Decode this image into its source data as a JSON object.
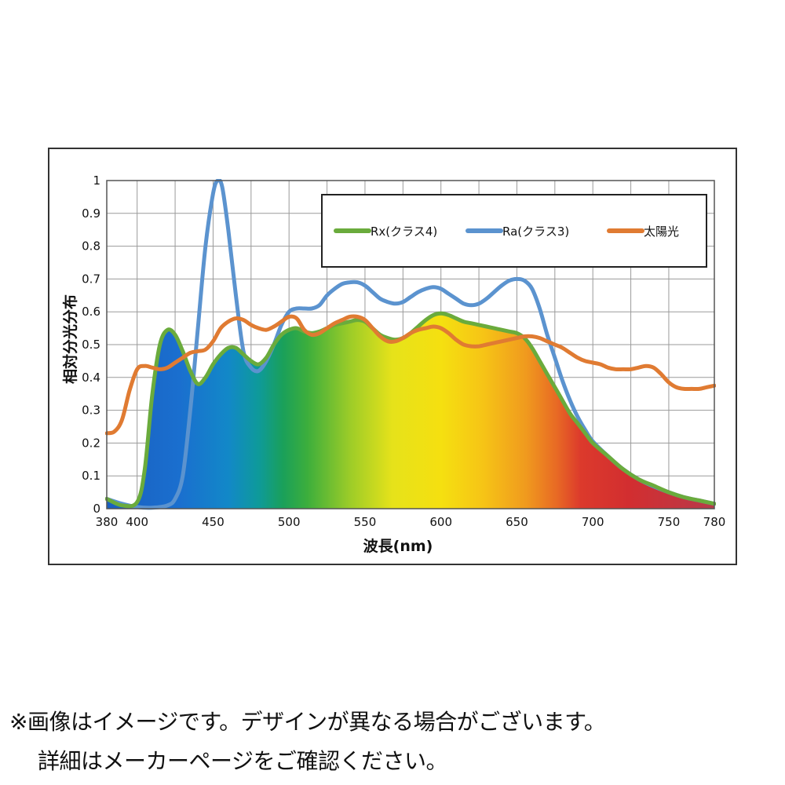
{
  "chart_data": {
    "type": "line",
    "xlabel": "波長(nm)",
    "ylabel": "相対分光分布",
    "xlim": [
      380,
      780
    ],
    "ylim": [
      0,
      1
    ],
    "x_tick_labels": [
      {
        "value": 380,
        "label": "380"
      },
      {
        "value": 400,
        "label": "400"
      },
      {
        "value": 450,
        "label": "450"
      },
      {
        "value": 500,
        "label": "500"
      },
      {
        "value": 550,
        "label": "550"
      },
      {
        "value": 600,
        "label": "600"
      },
      {
        "value": 650,
        "label": "650"
      },
      {
        "value": 700,
        "label": "700"
      },
      {
        "value": 750,
        "label": "750"
      },
      {
        "value": 780,
        "label": "780"
      }
    ],
    "x_gridlines": [
      380,
      400,
      425,
      450,
      475,
      500,
      525,
      550,
      575,
      600,
      625,
      650,
      675,
      700,
      725,
      750,
      780
    ],
    "y_ticks": [
      0,
      0.1,
      0.2,
      0.3,
      0.4,
      0.5,
      0.6,
      0.7,
      0.8,
      0.9,
      1
    ],
    "y_tick_labels": [
      "0",
      "0.1",
      "0.2",
      "0.3",
      "0.4",
      "0.5",
      "0.6",
      "0.7",
      "0.8",
      "0.9",
      "1"
    ],
    "grid": true,
    "legend_position": "top-right",
    "series": [
      {
        "name": "Rx(クラス4)",
        "color": "#6aab3c",
        "filled": "spectrum",
        "points": [
          [
            380,
            0.03
          ],
          [
            390,
            0.01
          ],
          [
            400,
            0.02
          ],
          [
            405,
            0.12
          ],
          [
            410,
            0.35
          ],
          [
            415,
            0.5
          ],
          [
            420,
            0.545
          ],
          [
            425,
            0.53
          ],
          [
            430,
            0.48
          ],
          [
            435,
            0.42
          ],
          [
            440,
            0.38
          ],
          [
            445,
            0.4
          ],
          [
            450,
            0.44
          ],
          [
            455,
            0.47
          ],
          [
            460,
            0.49
          ],
          [
            465,
            0.49
          ],
          [
            470,
            0.47
          ],
          [
            475,
            0.45
          ],
          [
            480,
            0.44
          ],
          [
            485,
            0.46
          ],
          [
            490,
            0.5
          ],
          [
            495,
            0.53
          ],
          [
            500,
            0.545
          ],
          [
            505,
            0.55
          ],
          [
            510,
            0.54
          ],
          [
            515,
            0.535
          ],
          [
            520,
            0.54
          ],
          [
            525,
            0.55
          ],
          [
            530,
            0.56
          ],
          [
            535,
            0.565
          ],
          [
            540,
            0.57
          ],
          [
            545,
            0.575
          ],
          [
            550,
            0.57
          ],
          [
            555,
            0.55
          ],
          [
            560,
            0.53
          ],
          [
            565,
            0.52
          ],
          [
            570,
            0.515
          ],
          [
            575,
            0.52
          ],
          [
            580,
            0.535
          ],
          [
            585,
            0.555
          ],
          [
            590,
            0.575
          ],
          [
            595,
            0.59
          ],
          [
            600,
            0.595
          ],
          [
            605,
            0.59
          ],
          [
            610,
            0.58
          ],
          [
            615,
            0.57
          ],
          [
            620,
            0.565
          ],
          [
            625,
            0.56
          ],
          [
            630,
            0.555
          ],
          [
            635,
            0.55
          ],
          [
            640,
            0.545
          ],
          [
            645,
            0.54
          ],
          [
            650,
            0.535
          ],
          [
            655,
            0.52
          ],
          [
            660,
            0.49
          ],
          [
            665,
            0.45
          ],
          [
            670,
            0.41
          ],
          [
            675,
            0.37
          ],
          [
            680,
            0.33
          ],
          [
            685,
            0.29
          ],
          [
            690,
            0.26
          ],
          [
            695,
            0.23
          ],
          [
            700,
            0.2
          ],
          [
            710,
            0.16
          ],
          [
            720,
            0.12
          ],
          [
            730,
            0.09
          ],
          [
            740,
            0.07
          ],
          [
            750,
            0.05
          ],
          [
            760,
            0.035
          ],
          [
            770,
            0.025
          ],
          [
            780,
            0.015
          ]
        ]
      },
      {
        "name": "Ra(クラス3)",
        "color": "#5b93cf",
        "points": [
          [
            380,
            0.03
          ],
          [
            390,
            0.015
          ],
          [
            400,
            0.005
          ],
          [
            410,
            0.003
          ],
          [
            420,
            0.01
          ],
          [
            425,
            0.03
          ],
          [
            430,
            0.1
          ],
          [
            435,
            0.3
          ],
          [
            440,
            0.55
          ],
          [
            445,
            0.8
          ],
          [
            450,
            0.96
          ],
          [
            453,
            1.0
          ],
          [
            456,
            0.98
          ],
          [
            460,
            0.85
          ],
          [
            465,
            0.65
          ],
          [
            470,
            0.48
          ],
          [
            475,
            0.43
          ],
          [
            480,
            0.42
          ],
          [
            485,
            0.45
          ],
          [
            490,
            0.5
          ],
          [
            495,
            0.56
          ],
          [
            500,
            0.6
          ],
          [
            505,
            0.61
          ],
          [
            510,
            0.61
          ],
          [
            515,
            0.61
          ],
          [
            520,
            0.62
          ],
          [
            525,
            0.65
          ],
          [
            530,
            0.67
          ],
          [
            535,
            0.685
          ],
          [
            540,
            0.69
          ],
          [
            545,
            0.69
          ],
          [
            550,
            0.68
          ],
          [
            555,
            0.66
          ],
          [
            560,
            0.64
          ],
          [
            565,
            0.63
          ],
          [
            570,
            0.625
          ],
          [
            575,
            0.63
          ],
          [
            580,
            0.645
          ],
          [
            585,
            0.66
          ],
          [
            590,
            0.67
          ],
          [
            595,
            0.675
          ],
          [
            600,
            0.67
          ],
          [
            605,
            0.655
          ],
          [
            610,
            0.64
          ],
          [
            615,
            0.625
          ],
          [
            620,
            0.62
          ],
          [
            625,
            0.625
          ],
          [
            630,
            0.64
          ],
          [
            635,
            0.66
          ],
          [
            640,
            0.68
          ],
          [
            645,
            0.695
          ],
          [
            650,
            0.7
          ],
          [
            655,
            0.695
          ],
          [
            660,
            0.67
          ],
          [
            665,
            0.61
          ],
          [
            670,
            0.53
          ],
          [
            675,
            0.46
          ],
          [
            680,
            0.39
          ],
          [
            685,
            0.33
          ],
          [
            690,
            0.28
          ],
          [
            695,
            0.24
          ],
          [
            700,
            0.205
          ],
          [
            710,
            0.16
          ],
          [
            720,
            0.12
          ],
          [
            730,
            0.09
          ],
          [
            740,
            0.068
          ],
          [
            750,
            0.05
          ],
          [
            760,
            0.035
          ],
          [
            770,
            0.025
          ],
          [
            780,
            0.015
          ]
        ]
      },
      {
        "name": "太陽光",
        "color": "#e07b32",
        "points": [
          [
            380,
            0.23
          ],
          [
            385,
            0.235
          ],
          [
            390,
            0.27
          ],
          [
            395,
            0.36
          ],
          [
            400,
            0.425
          ],
          [
            405,
            0.435
          ],
          [
            410,
            0.43
          ],
          [
            415,
            0.425
          ],
          [
            420,
            0.43
          ],
          [
            425,
            0.445
          ],
          [
            430,
            0.46
          ],
          [
            435,
            0.475
          ],
          [
            440,
            0.48
          ],
          [
            445,
            0.485
          ],
          [
            450,
            0.51
          ],
          [
            455,
            0.55
          ],
          [
            460,
            0.57
          ],
          [
            465,
            0.58
          ],
          [
            470,
            0.575
          ],
          [
            475,
            0.56
          ],
          [
            480,
            0.55
          ],
          [
            485,
            0.545
          ],
          [
            490,
            0.555
          ],
          [
            495,
            0.57
          ],
          [
            500,
            0.585
          ],
          [
            505,
            0.58
          ],
          [
            510,
            0.545
          ],
          [
            515,
            0.53
          ],
          [
            520,
            0.535
          ],
          [
            525,
            0.55
          ],
          [
            530,
            0.565
          ],
          [
            535,
            0.575
          ],
          [
            540,
            0.585
          ],
          [
            545,
            0.585
          ],
          [
            550,
            0.575
          ],
          [
            555,
            0.55
          ],
          [
            560,
            0.525
          ],
          [
            565,
            0.51
          ],
          [
            570,
            0.51
          ],
          [
            575,
            0.52
          ],
          [
            580,
            0.535
          ],
          [
            585,
            0.545
          ],
          [
            590,
            0.55
          ],
          [
            595,
            0.555
          ],
          [
            600,
            0.55
          ],
          [
            605,
            0.535
          ],
          [
            610,
            0.515
          ],
          [
            615,
            0.5
          ],
          [
            620,
            0.495
          ],
          [
            625,
            0.495
          ],
          [
            630,
            0.5
          ],
          [
            635,
            0.505
          ],
          [
            640,
            0.51
          ],
          [
            645,
            0.515
          ],
          [
            650,
            0.52
          ],
          [
            655,
            0.525
          ],
          [
            660,
            0.525
          ],
          [
            665,
            0.52
          ],
          [
            670,
            0.51
          ],
          [
            675,
            0.5
          ],
          [
            680,
            0.49
          ],
          [
            685,
            0.475
          ],
          [
            690,
            0.46
          ],
          [
            695,
            0.45
          ],
          [
            700,
            0.445
          ],
          [
            705,
            0.44
          ],
          [
            710,
            0.43
          ],
          [
            715,
            0.425
          ],
          [
            720,
            0.425
          ],
          [
            725,
            0.425
          ],
          [
            730,
            0.43
          ],
          [
            735,
            0.435
          ],
          [
            740,
            0.43
          ],
          [
            745,
            0.41
          ],
          [
            750,
            0.385
          ],
          [
            755,
            0.37
          ],
          [
            760,
            0.365
          ],
          [
            765,
            0.365
          ],
          [
            770,
            0.365
          ],
          [
            775,
            0.37
          ],
          [
            780,
            0.375
          ]
        ]
      }
    ]
  },
  "notes": {
    "line1": "※画像はイメージです。デザインが異なる場合がございます。",
    "line2": "詳細はメーカーページをご確認ください。"
  }
}
